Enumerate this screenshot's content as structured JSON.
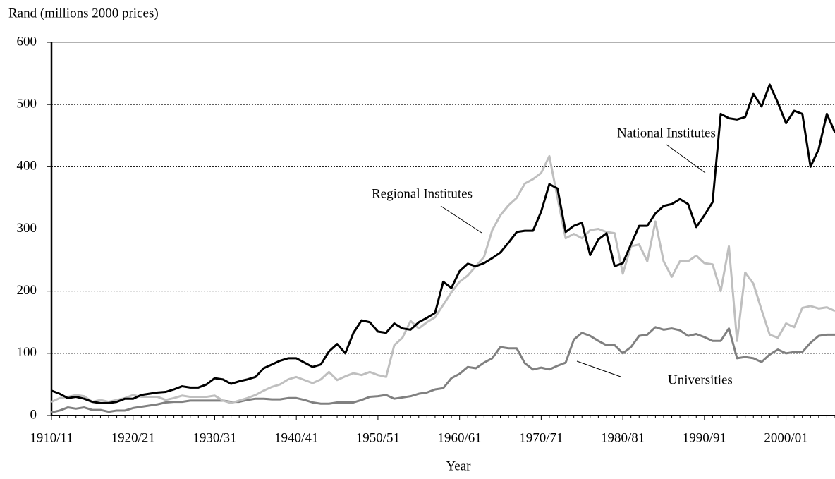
{
  "chart_data": {
    "type": "line",
    "y_label": "Rand (millions 2000 prices)",
    "x_label": "Year",
    "categories": [
      "1910/11",
      null,
      null,
      null,
      null,
      null,
      null,
      null,
      null,
      null,
      "1920/21",
      null,
      null,
      null,
      null,
      null,
      null,
      null,
      null,
      null,
      "1930/31",
      null,
      null,
      null,
      null,
      null,
      null,
      null,
      null,
      null,
      "1940/41",
      null,
      null,
      null,
      null,
      null,
      null,
      null,
      null,
      null,
      "1950/51",
      null,
      null,
      null,
      null,
      null,
      null,
      null,
      null,
      null,
      "1960/61",
      null,
      null,
      null,
      null,
      null,
      null,
      null,
      null,
      null,
      "1970/71",
      null,
      null,
      null,
      null,
      null,
      null,
      null,
      null,
      null,
      "1980/81",
      null,
      null,
      null,
      null,
      null,
      null,
      null,
      null,
      null,
      "1990/91",
      null,
      null,
      null,
      null,
      null,
      null,
      null,
      null,
      null,
      "2000/01",
      null,
      null,
      null,
      null,
      null,
      null
    ],
    "series": [
      {
        "name": "National Institutes",
        "color": "#000000",
        "values": [
          40,
          35,
          28,
          30,
          27,
          22,
          20,
          20,
          22,
          27,
          27,
          33,
          35,
          37,
          38,
          42,
          47,
          45,
          45,
          50,
          60,
          58,
          51,
          55,
          58,
          62,
          76,
          82,
          88,
          92,
          92,
          85,
          78,
          82,
          103,
          115,
          100,
          133,
          153,
          150,
          135,
          133,
          148,
          140,
          138,
          150,
          157,
          165,
          215,
          205,
          232,
          244,
          240,
          245,
          253,
          262,
          278,
          295,
          297,
          297,
          328,
          372,
          365,
          295,
          305,
          310,
          258,
          283,
          293,
          240,
          245,
          275,
          305,
          305,
          325,
          337,
          340,
          348,
          340,
          303,
          322,
          343,
          485,
          478,
          476,
          480,
          517,
          497,
          532,
          503,
          470,
          490,
          485,
          400,
          428,
          485,
          455
        ]
      },
      {
        "name": "Regional Institutes",
        "color": "#bfbfbf",
        "values": [
          22,
          28,
          30,
          33,
          31,
          22,
          25,
          22,
          25,
          28,
          33,
          30,
          30,
          30,
          25,
          28,
          32,
          30,
          30,
          30,
          32,
          24,
          20,
          24,
          28,
          33,
          40,
          46,
          50,
          58,
          62,
          57,
          52,
          58,
          70,
          57,
          63,
          68,
          65,
          70,
          65,
          62,
          113,
          125,
          152,
          140,
          150,
          158,
          178,
          198,
          215,
          225,
          240,
          255,
          298,
          322,
          338,
          350,
          373,
          380,
          390,
          417,
          350,
          285,
          292,
          285,
          298,
          300,
          295,
          293,
          228,
          272,
          275,
          248,
          312,
          248,
          223,
          248,
          248,
          257,
          245,
          243,
          200,
          272,
          120,
          230,
          212,
          170,
          130,
          125,
          148,
          142,
          173,
          176,
          172,
          174,
          168
        ]
      },
      {
        "name": "Universities",
        "color": "#808080",
        "values": [
          5,
          8,
          13,
          11,
          13,
          9,
          9,
          6,
          8,
          8,
          12,
          14,
          16,
          18,
          21,
          22,
          22,
          24,
          24,
          24,
          24,
          24,
          22,
          22,
          25,
          27,
          27,
          26,
          26,
          28,
          28,
          25,
          21,
          19,
          19,
          21,
          21,
          21,
          25,
          30,
          31,
          33,
          27,
          29,
          31,
          35,
          37,
          42,
          44,
          60,
          67,
          78,
          76,
          85,
          92,
          110,
          108,
          108,
          84,
          74,
          77,
          74,
          80,
          85,
          122,
          133,
          128,
          120,
          113,
          113,
          100,
          110,
          128,
          130,
          142,
          138,
          140,
          137,
          128,
          131,
          126,
          120,
          120,
          140,
          92,
          94,
          92,
          86,
          98,
          106,
          100,
          102,
          102,
          117,
          128,
          130,
          130
        ]
      }
    ],
    "ylim": [
      0,
      600
    ],
    "yticks": [
      0,
      100,
      200,
      300,
      400,
      500,
      600
    ],
    "grid": true
  }
}
